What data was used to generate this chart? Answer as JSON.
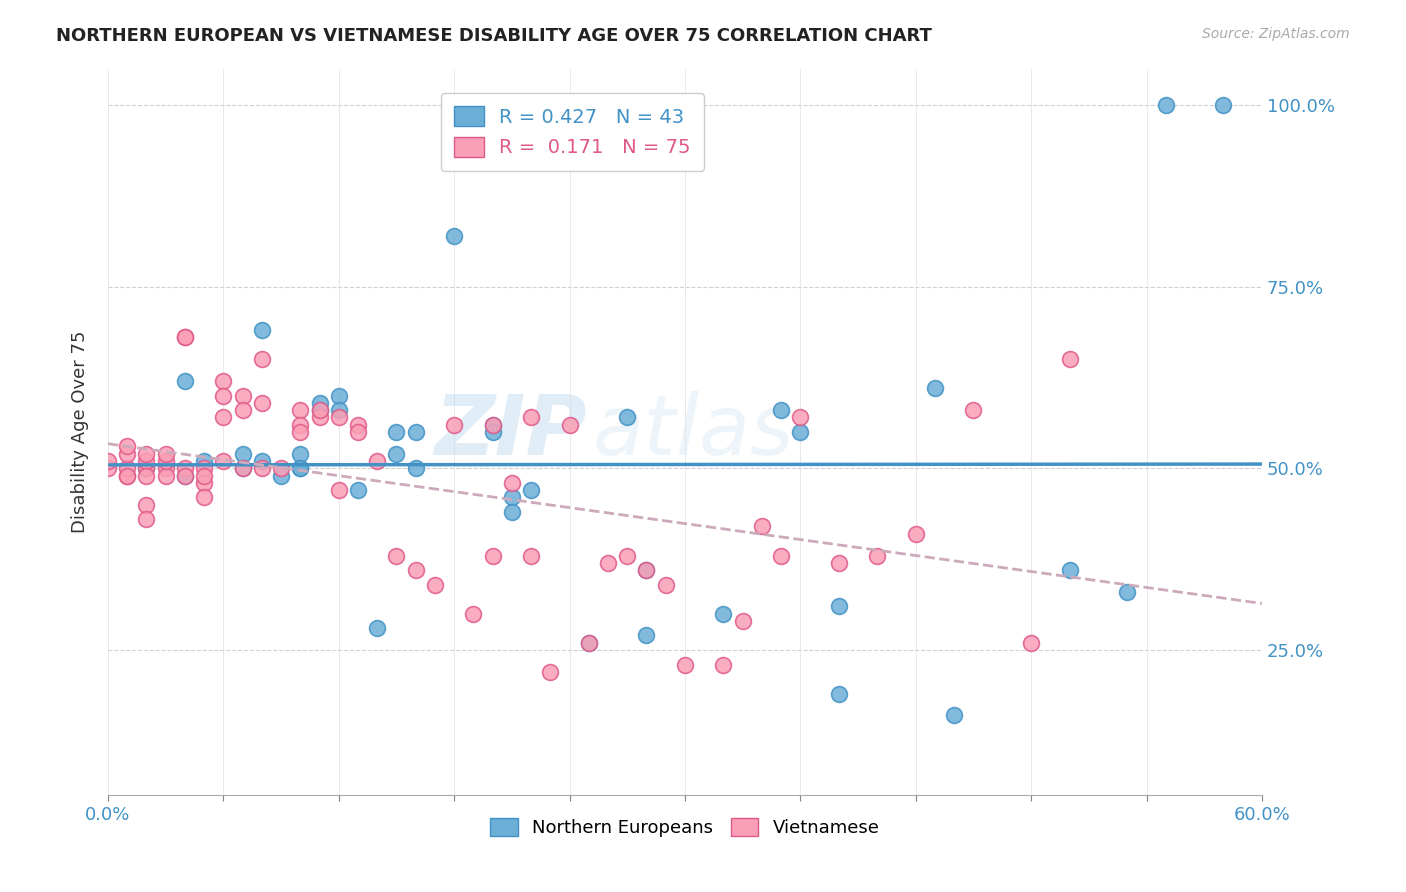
{
  "title": "NORTHERN EUROPEAN VS VIETNAMESE DISABILITY AGE OVER 75 CORRELATION CHART",
  "source": "Source: ZipAtlas.com",
  "ylabel": "Disability Age Over 75",
  "legend_blue": {
    "R": "0.427",
    "N": "43",
    "label": "Northern Europeans"
  },
  "legend_pink": {
    "R": "0.171",
    "N": "75",
    "label": "Vietnamese"
  },
  "blue_color": "#6baed6",
  "pink_color": "#fa9fb5",
  "blue_line_color": "#4292c6",
  "pink_line_color": "#c994c7",
  "pink_edge_color": "#e05888",
  "xmin": 0.0,
  "xmax": 0.6,
  "ymin": 0.05,
  "ymax": 1.05,
  "blue_scatter_x": [
    0.02,
    0.04,
    0.04,
    0.05,
    0.07,
    0.07,
    0.08,
    0.08,
    0.09,
    0.1,
    0.1,
    0.1,
    0.11,
    0.11,
    0.12,
    0.12,
    0.13,
    0.14,
    0.15,
    0.15,
    0.16,
    0.16,
    0.18,
    0.2,
    0.2,
    0.21,
    0.21,
    0.22,
    0.25,
    0.27,
    0.28,
    0.28,
    0.32,
    0.35,
    0.36,
    0.38,
    0.38,
    0.43,
    0.44,
    0.5,
    0.53,
    0.55,
    0.58
  ],
  "blue_scatter_y": [
    0.5,
    0.62,
    0.49,
    0.51,
    0.52,
    0.5,
    0.69,
    0.51,
    0.49,
    0.5,
    0.52,
    0.5,
    0.58,
    0.59,
    0.6,
    0.58,
    0.47,
    0.28,
    0.55,
    0.52,
    0.55,
    0.5,
    0.82,
    0.56,
    0.55,
    0.46,
    0.44,
    0.47,
    0.26,
    0.57,
    0.27,
    0.36,
    0.3,
    0.58,
    0.55,
    0.19,
    0.31,
    0.61,
    0.16,
    0.36,
    0.33,
    1.0,
    1.0
  ],
  "pink_scatter_x": [
    0.0,
    0.0,
    0.01,
    0.01,
    0.01,
    0.01,
    0.01,
    0.02,
    0.02,
    0.02,
    0.02,
    0.02,
    0.02,
    0.03,
    0.03,
    0.03,
    0.03,
    0.04,
    0.04,
    0.04,
    0.04,
    0.05,
    0.05,
    0.05,
    0.05,
    0.06,
    0.06,
    0.06,
    0.06,
    0.07,
    0.07,
    0.07,
    0.08,
    0.08,
    0.08,
    0.09,
    0.1,
    0.1,
    0.1,
    0.11,
    0.11,
    0.12,
    0.12,
    0.13,
    0.13,
    0.14,
    0.15,
    0.16,
    0.17,
    0.18,
    0.19,
    0.2,
    0.2,
    0.21,
    0.22,
    0.22,
    0.23,
    0.24,
    0.25,
    0.26,
    0.27,
    0.28,
    0.29,
    0.3,
    0.32,
    0.33,
    0.34,
    0.35,
    0.36,
    0.38,
    0.4,
    0.42,
    0.45,
    0.48,
    0.5
  ],
  "pink_scatter_y": [
    0.5,
    0.51,
    0.49,
    0.5,
    0.52,
    0.53,
    0.49,
    0.5,
    0.51,
    0.49,
    0.52,
    0.45,
    0.43,
    0.5,
    0.49,
    0.51,
    0.52,
    0.68,
    0.68,
    0.5,
    0.49,
    0.5,
    0.48,
    0.46,
    0.49,
    0.62,
    0.6,
    0.57,
    0.51,
    0.6,
    0.58,
    0.5,
    0.5,
    0.59,
    0.65,
    0.5,
    0.58,
    0.56,
    0.55,
    0.57,
    0.58,
    0.57,
    0.47,
    0.56,
    0.55,
    0.51,
    0.38,
    0.36,
    0.34,
    0.56,
    0.3,
    0.38,
    0.56,
    0.48,
    0.57,
    0.38,
    0.22,
    0.56,
    0.26,
    0.37,
    0.38,
    0.36,
    0.34,
    0.23,
    0.23,
    0.29,
    0.42,
    0.38,
    0.57,
    0.37,
    0.38,
    0.41,
    0.58,
    0.26,
    0.65
  ],
  "watermark_zip": "ZIP",
  "watermark_atlas": "atlas"
}
